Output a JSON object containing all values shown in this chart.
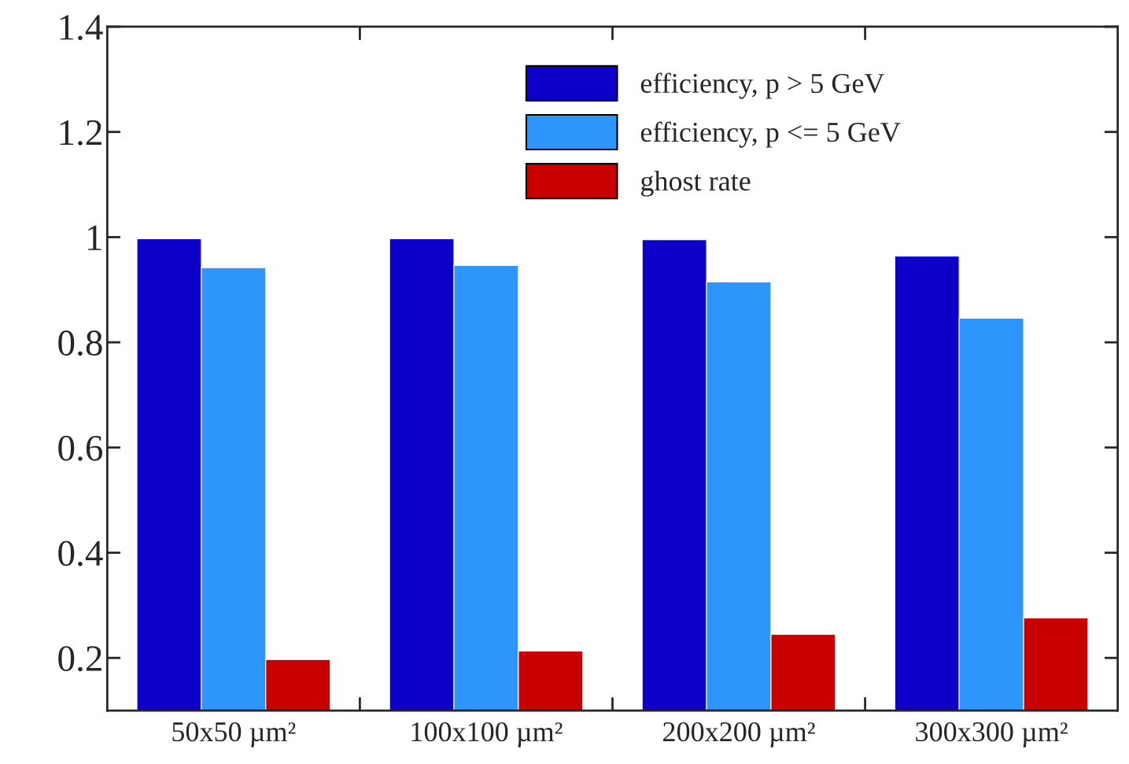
{
  "chart_data": {
    "type": "bar",
    "categories": [
      "50x50 µm²",
      "100x100 µm²",
      "200x200 µm²",
      "300x300 µm²"
    ],
    "series": [
      {
        "name": "efficiency, p > 5 GeV",
        "color": "#0d00c8",
        "values": [
          0.997,
          0.997,
          0.995,
          0.964
        ]
      },
      {
        "name": "efficiency, p <= 5 GeV",
        "color": "#2e96fb",
        "values": [
          0.942,
          0.946,
          0.915,
          0.846
        ]
      },
      {
        "name": "ghost rate",
        "color": "#c80000",
        "values": [
          0.197,
          0.213,
          0.245,
          0.276
        ]
      }
    ],
    "ylim": [
      0.1,
      1.4
    ],
    "yticks": [
      0.2,
      0.4,
      0.6,
      0.8,
      1,
      1.2,
      1.4
    ],
    "grid": false,
    "legend": "top"
  }
}
